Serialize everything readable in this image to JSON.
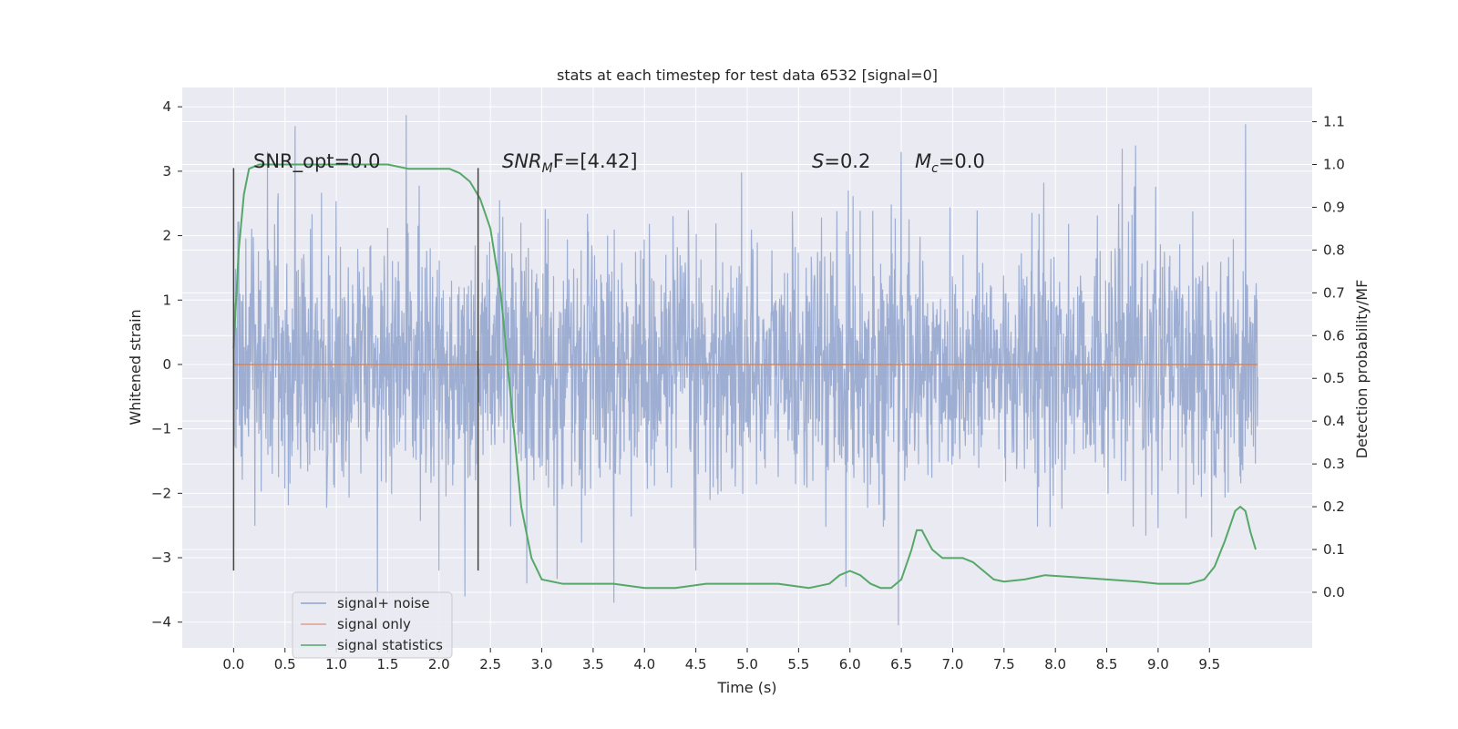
{
  "chart_data": {
    "type": "line",
    "title": "stats at each timestep for test data 6532 [signal=0]",
    "xlabel": "Time (s)",
    "ylabel": "Whitened strain",
    "y2label": "Detection probability/MF",
    "xlim": [
      -0.5,
      10.5
    ],
    "ylim": [
      -4.4,
      4.3
    ],
    "y2lim": [
      -0.13,
      1.18
    ],
    "x_ticks": [
      0.0,
      0.5,
      1.0,
      1.5,
      2.0,
      2.5,
      3.0,
      3.5,
      4.0,
      4.5,
      5.0,
      5.5,
      6.0,
      6.5,
      7.0,
      7.5,
      8.0,
      8.5,
      9.0,
      9.5
    ],
    "x_tick_labels": [
      "0.0",
      "0.5",
      "1.0",
      "1.5",
      "2.0",
      "2.5",
      "3.0",
      "3.5",
      "4.0",
      "4.5",
      "5.0",
      "5.5",
      "6.0",
      "6.5",
      "7.0",
      "7.5",
      "8.0",
      "8.5",
      "9.0",
      "9.5"
    ],
    "y_ticks": [
      -4,
      -3,
      -2,
      -1,
      0,
      1,
      2,
      3,
      4
    ],
    "y_tick_labels": [
      "−4",
      "−3",
      "−2",
      "−1",
      "0",
      "1",
      "2",
      "3",
      "4"
    ],
    "y2_ticks": [
      0.0,
      0.1,
      0.2,
      0.3,
      0.4,
      0.5,
      0.6,
      0.7,
      0.8,
      0.9,
      1.0,
      1.1
    ],
    "y2_tick_labels": [
      "0.0",
      "0.1",
      "0.2",
      "0.3",
      "0.4",
      "0.5",
      "0.6",
      "0.7",
      "0.8",
      "0.9",
      "1.0",
      "1.1"
    ],
    "grid": true,
    "legend_position": "bottom-left",
    "legend": [
      {
        "label": "signal+ noise",
        "color": "#8fa3cc"
      },
      {
        "label": "signal only",
        "color": "#e0a08a"
      },
      {
        "label": "signal statistics",
        "color": "#55a868"
      }
    ],
    "annotations": {
      "snr_opt": "SNR_opt=0.0",
      "snr_mf_prefix": "SNR",
      "snr_mf_sub": "M",
      "snr_mf_suffix": "F=[4.42]",
      "s_letter": "S",
      "s_value": "=0.2",
      "mc_letter": "M",
      "mc_sub": "c",
      "mc_value": "=0.0"
    },
    "vlines": [
      {
        "x": 0.0,
        "ymin": -3.2,
        "ymax": 3.05
      },
      {
        "x": 2.38,
        "ymin": -3.2,
        "ymax": 3.05
      }
    ],
    "signal_plus_noise": {
      "x_range": [
        0.0,
        9.97
      ],
      "color": "#8fa3cc",
      "typical_amplitude": 1.7,
      "max": 3.87,
      "min": -4.1,
      "spikes": [
        {
          "x": 0.33,
          "y": 3.3
        },
        {
          "x": 0.6,
          "y": 3.7
        },
        {
          "x": 1.4,
          "y": -3.6
        },
        {
          "x": 1.68,
          "y": 3.87
        },
        {
          "x": 2.25,
          "y": -3.6
        },
        {
          "x": 3.7,
          "y": -3.7
        },
        {
          "x": 6.47,
          "y": -4.05
        },
        {
          "x": 6.5,
          "y": 3.3
        },
        {
          "x": 8.65,
          "y": 3.35
        },
        {
          "x": 9.85,
          "y": 3.73
        },
        {
          "x": 2.0,
          "y": -3.2
        },
        {
          "x": 4.5,
          "y": -3.2
        },
        {
          "x": 5.96,
          "y": -3.45
        },
        {
          "x": 3.15,
          "y": -3.33
        }
      ]
    },
    "signal_only": {
      "x": [
        0.0,
        9.97
      ],
      "y": [
        0.0,
        0.0
      ],
      "color": "#dd8452"
    },
    "signal_statistics": {
      "color": "#55a868",
      "x": [
        0.0,
        0.05,
        0.1,
        0.15,
        0.25,
        0.5,
        1.0,
        1.5,
        1.7,
        1.9,
        2.1,
        2.2,
        2.3,
        2.4,
        2.5,
        2.6,
        2.7,
        2.8,
        2.9,
        3.0,
        3.2,
        3.5,
        3.7,
        4.0,
        4.3,
        4.6,
        5.0,
        5.3,
        5.6,
        5.8,
        5.9,
        6.0,
        6.1,
        6.2,
        6.3,
        6.4,
        6.5,
        6.6,
        6.65,
        6.7,
        6.8,
        6.9,
        7.0,
        7.1,
        7.2,
        7.3,
        7.4,
        7.5,
        7.7,
        7.9,
        8.2,
        8.5,
        8.8,
        9.0,
        9.3,
        9.45,
        9.55,
        9.65,
        9.75,
        9.8,
        9.85,
        9.9,
        9.95
      ],
      "y": [
        0.57,
        0.8,
        0.93,
        0.99,
        1.0,
        1.0,
        1.0,
        1.0,
        0.99,
        0.99,
        0.99,
        0.98,
        0.96,
        0.92,
        0.85,
        0.7,
        0.45,
        0.2,
        0.08,
        0.03,
        0.02,
        0.02,
        0.02,
        0.01,
        0.01,
        0.02,
        0.02,
        0.02,
        0.01,
        0.02,
        0.04,
        0.05,
        0.04,
        0.02,
        0.01,
        0.01,
        0.03,
        0.1,
        0.145,
        0.145,
        0.1,
        0.08,
        0.08,
        0.08,
        0.07,
        0.05,
        0.03,
        0.025,
        0.03,
        0.04,
        0.035,
        0.03,
        0.025,
        0.02,
        0.02,
        0.03,
        0.06,
        0.12,
        0.19,
        0.2,
        0.19,
        0.14,
        0.1
      ]
    }
  }
}
